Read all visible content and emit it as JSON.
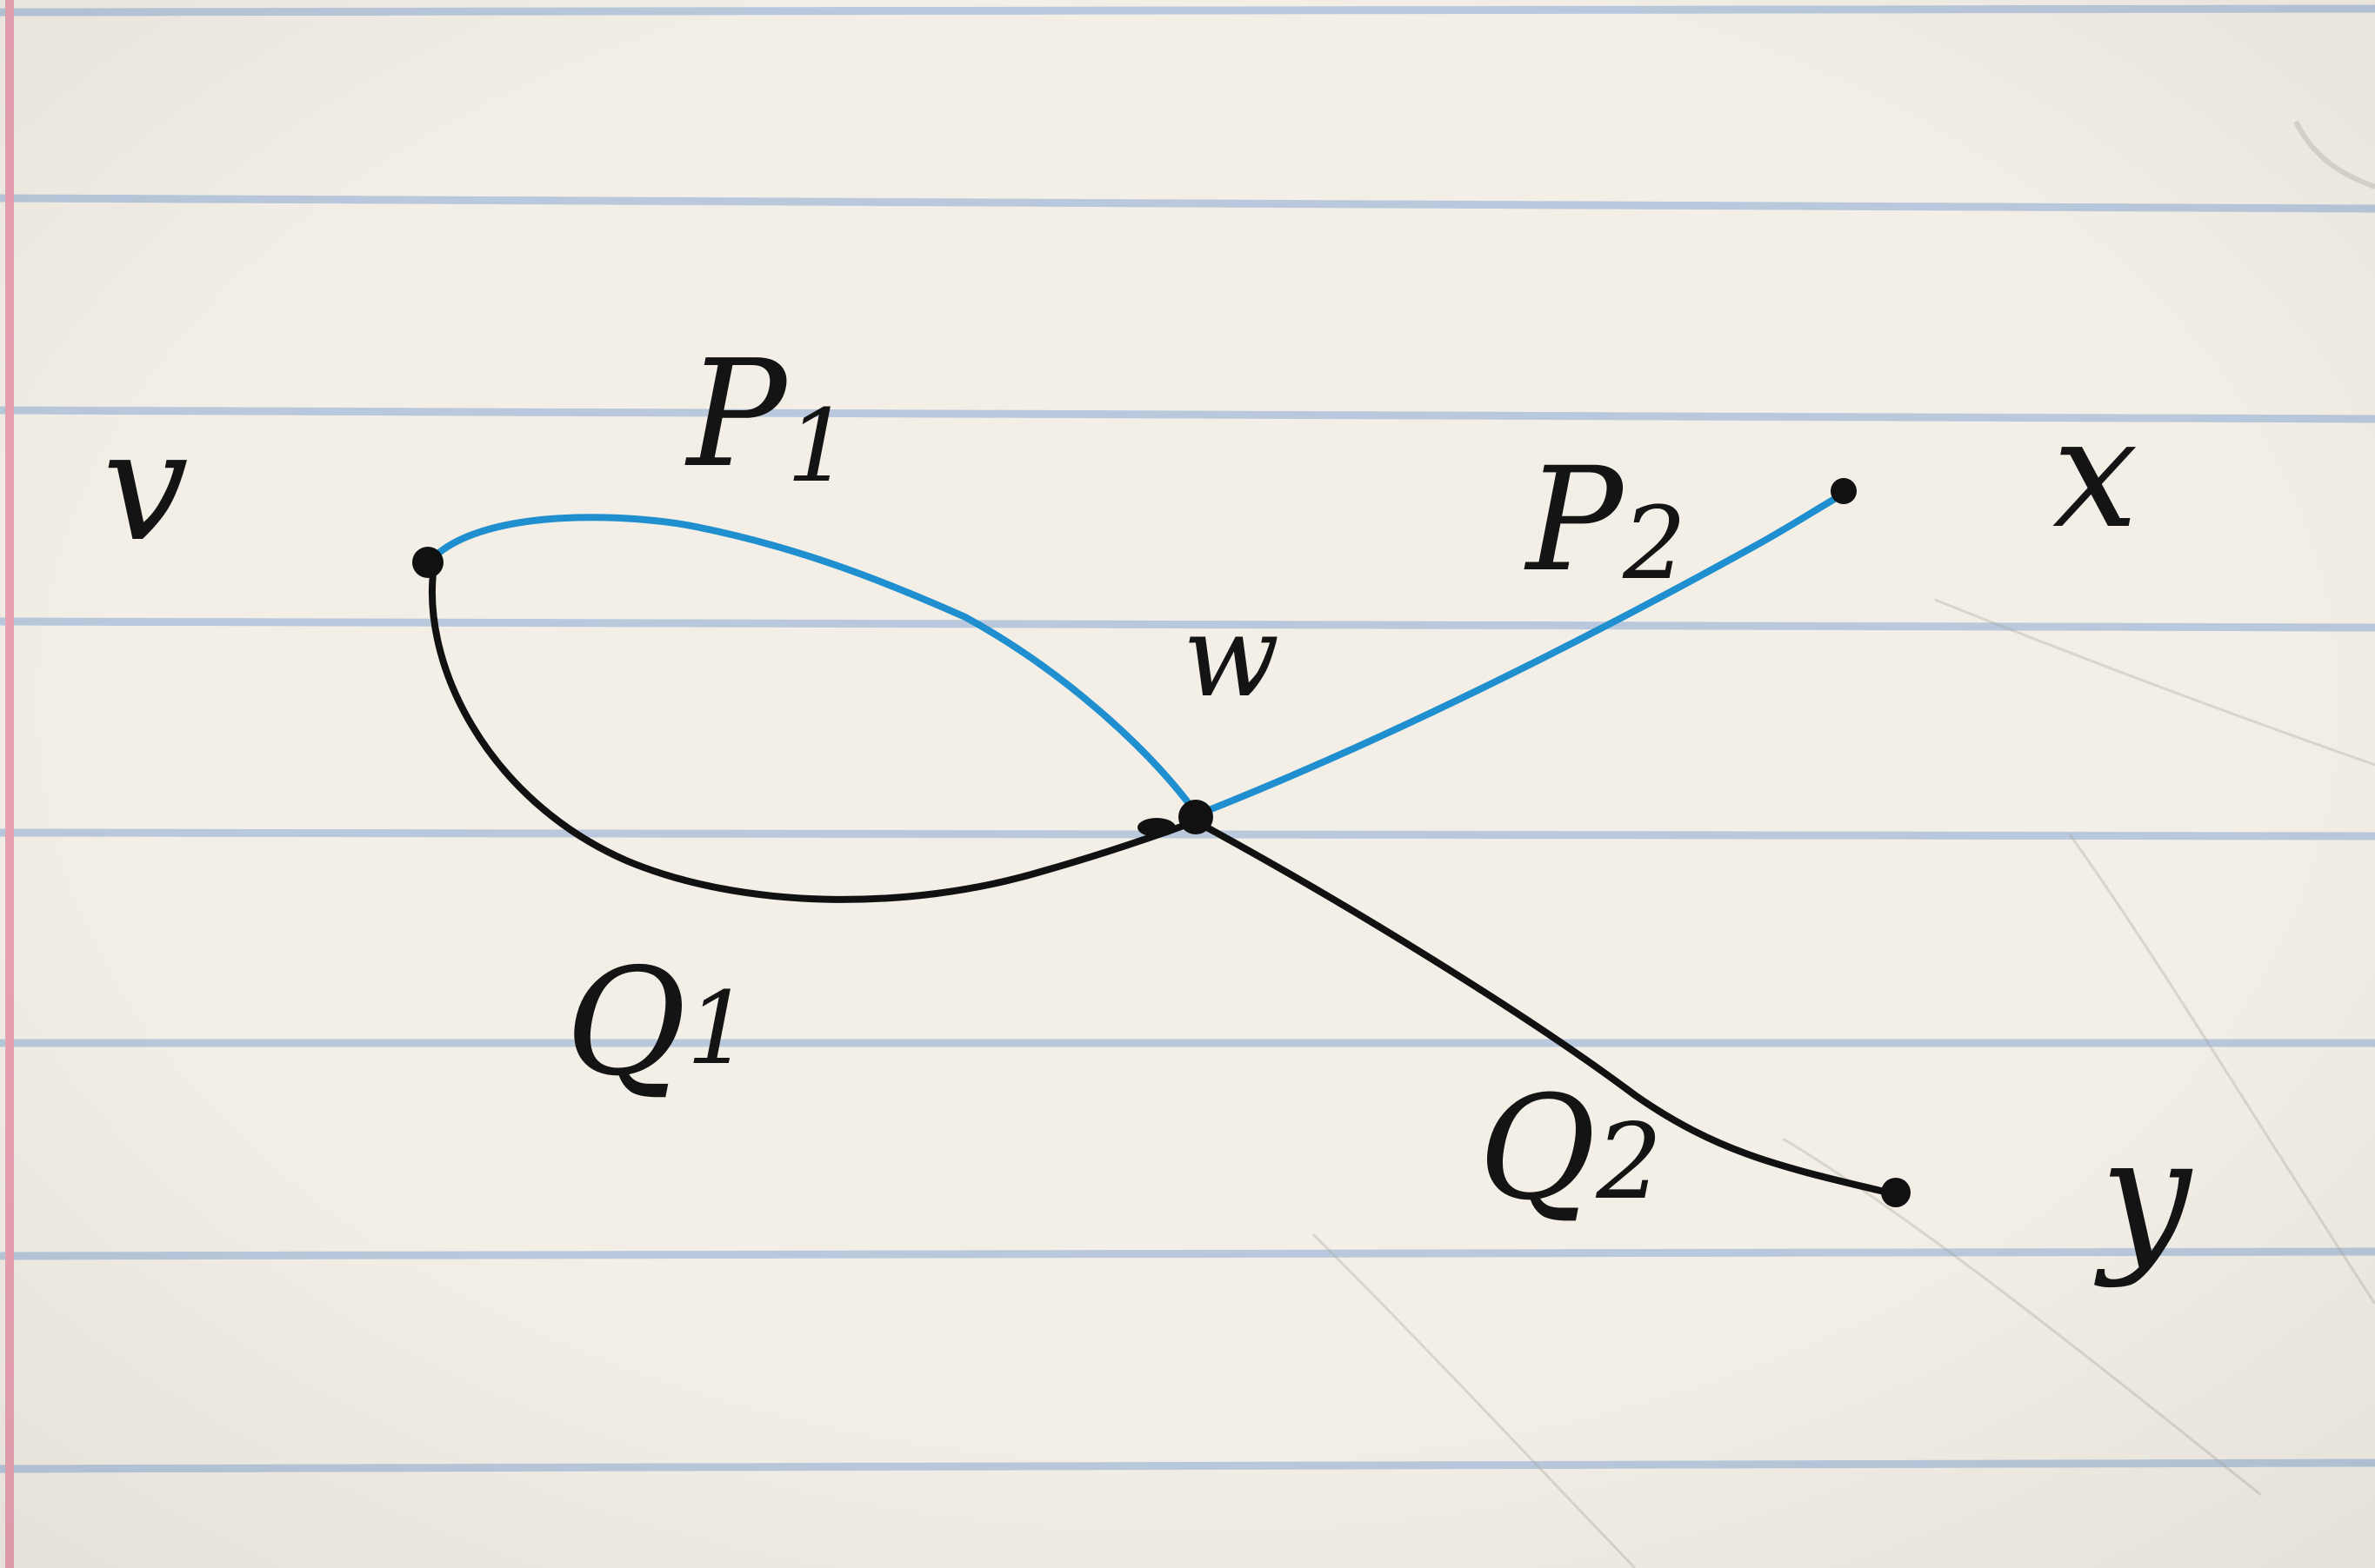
{
  "diagram": {
    "nodes": [
      {
        "id": "v",
        "label": "v"
      },
      {
        "id": "w",
        "label": "w"
      },
      {
        "id": "x",
        "label": "x"
      },
      {
        "id": "y",
        "label": "y"
      }
    ],
    "paths": [
      {
        "id": "P1",
        "label": "P",
        "subscript": "1",
        "from": "v",
        "to": "w",
        "color": "#1f8fd0"
      },
      {
        "id": "P2",
        "label": "P",
        "subscript": "2",
        "from": "w",
        "to": "x",
        "color": "#1f8fd0"
      },
      {
        "id": "Q1",
        "label": "Q",
        "subscript": "1",
        "from": "v",
        "to": "w",
        "color": "#111111"
      },
      {
        "id": "Q2",
        "label": "Q",
        "subscript": "2",
        "from": "w",
        "to": "y",
        "color": "#111111"
      }
    ]
  },
  "colors": {
    "paper": "#f3efe6",
    "rule_lines": "#b9c8dc",
    "margin_line": "#e9a3b3",
    "ink_black": "#111111",
    "ink_blue": "#1f8fd0"
  }
}
